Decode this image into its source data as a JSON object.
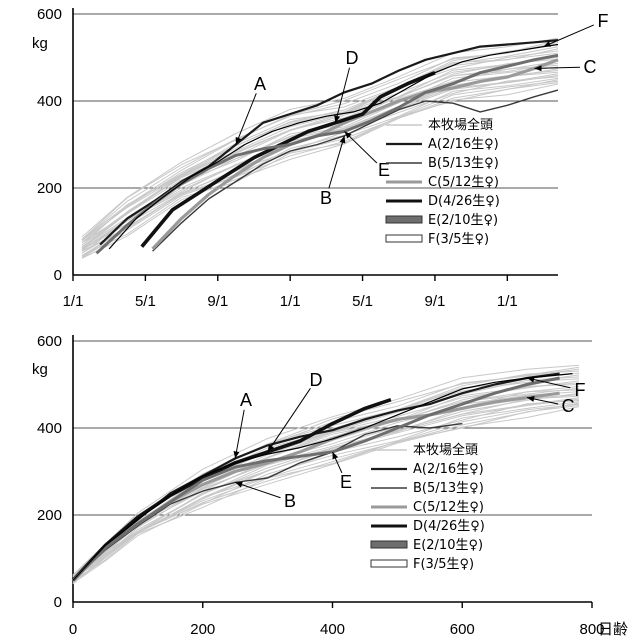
{
  "chart_data": [
    {
      "type": "line",
      "title": "",
      "xlabel": "",
      "ylabel": "kg",
      "ylim": [
        0,
        600
      ],
      "y_ticks": [
        "0",
        "200",
        "400",
        "600"
      ],
      "x_tick_labels": [
        "1/1",
        "5/1",
        "9/1",
        "1/1",
        "5/1",
        "9/1",
        "1/1"
      ],
      "xlim_months": [
        0,
        26.8
      ],
      "grid": "horizontal",
      "legend_position": "right-middle",
      "x_unit": "months since 1/1",
      "background_band": {
        "name": "本牧場全頭",
        "x": [
          0.5,
          3,
          6,
          9,
          12,
          15,
          18,
          21,
          24,
          26.8
        ],
        "lower": [
          40,
          95,
          170,
          215,
          270,
          305,
          355,
          400,
          420,
          440
        ],
        "upper": [
          85,
          175,
          255,
          320,
          375,
          400,
          450,
          505,
          520,
          540
        ]
      },
      "series": [
        {
          "name": "A(2/16生♀)",
          "key": "A",
          "x": [
            1.5,
            3,
            4.5,
            6,
            7.5,
            9,
            10.5,
            12,
            13.5,
            15,
            16.5,
            18,
            19.5,
            21,
            22.5,
            24,
            25.5,
            26.8
          ],
          "y": [
            70,
            130,
            170,
            215,
            250,
            300,
            350,
            370,
            390,
            420,
            440,
            470,
            495,
            510,
            525,
            530,
            535,
            540
          ]
        },
        {
          "name": "B(5/13生♀)",
          "key": "B",
          "x": [
            4.4,
            6,
            7.5,
            9,
            10.5,
            12,
            13.5,
            15,
            16.5,
            18,
            19.5,
            21,
            22.5,
            24,
            25.5,
            26.8
          ],
          "y": [
            55,
            120,
            175,
            215,
            255,
            285,
            300,
            320,
            350,
            380,
            400,
            395,
            375,
            390,
            410,
            425
          ]
        },
        {
          "name": "C(5/12生♀)",
          "key": "C",
          "x": [
            4.4,
            6,
            7.5,
            9,
            10.5,
            12,
            13.5,
            15,
            16.5,
            18,
            19.5,
            21,
            22.5,
            24,
            25.5,
            26.8
          ],
          "y": [
            60,
            130,
            185,
            230,
            270,
            300,
            320,
            350,
            375,
            400,
            420,
            430,
            445,
            455,
            475,
            495
          ]
        },
        {
          "name": "D(4/26生♀)",
          "key": "D",
          "x": [
            3.8,
            5.5,
            7,
            8.5,
            10,
            11.5,
            13,
            14.5,
            16,
            17,
            18.5,
            20
          ],
          "y": [
            65,
            150,
            190,
            230,
            270,
            300,
            330,
            350,
            370,
            410,
            440,
            465
          ]
        },
        {
          "name": "E(2/10生♀)",
          "key": "E",
          "x": [
            1.3,
            3,
            4.5,
            6,
            7.5,
            9,
            10.5,
            12,
            13.5,
            15,
            16.5,
            18,
            19.5,
            21,
            22.5,
            24,
            25.5,
            26.8
          ],
          "y": [
            50,
            115,
            165,
            210,
            245,
            275,
            290,
            300,
            320,
            330,
            355,
            385,
            420,
            440,
            465,
            480,
            495,
            505
          ]
        },
        {
          "name": "F(3/5生♀)",
          "key": "F",
          "x": [
            2,
            3.5,
            5,
            6.5,
            8,
            9.5,
            11,
            12.5,
            14,
            15.5,
            17,
            18.5,
            20,
            21.5,
            23,
            24.5,
            26,
            26.8
          ],
          "y": [
            60,
            130,
            180,
            225,
            260,
            300,
            330,
            350,
            365,
            375,
            395,
            430,
            465,
            490,
            505,
            515,
            525,
            530
          ]
        }
      ],
      "annotations": [
        {
          "text": "A",
          "series": "A"
        },
        {
          "text": "B",
          "series": "B"
        },
        {
          "text": "C",
          "series": "C"
        },
        {
          "text": "D",
          "series": "D"
        },
        {
          "text": "E",
          "series": "E"
        },
        {
          "text": "F",
          "series": "F"
        }
      ]
    },
    {
      "type": "line",
      "title": "",
      "xlabel": "日齢",
      "ylabel": "kg",
      "ylim": [
        0,
        600
      ],
      "xlim": [
        0,
        800
      ],
      "y_ticks": [
        "0",
        "200",
        "400",
        "600"
      ],
      "x_ticks": [
        "0",
        "200",
        "400",
        "600",
        "800"
      ],
      "grid": "horizontal",
      "legend_position": "right-middle",
      "background_band": {
        "name": "本牧場全頭",
        "x": [
          0,
          50,
          100,
          200,
          300,
          400,
          500,
          600,
          700,
          780
        ],
        "lower": [
          45,
          100,
          150,
          220,
          275,
          320,
          360,
          400,
          430,
          450
        ],
        "upper": [
          60,
          130,
          200,
          300,
          370,
          420,
          460,
          510,
          530,
          540
        ]
      },
      "series": [
        {
          "name": "A(2/16生♀)",
          "key": "A",
          "x": [
            0,
            50,
            100,
            150,
            200,
            250,
            300,
            350,
            400,
            450,
            500,
            550,
            600,
            650,
            700,
            750
          ],
          "y": [
            50,
            130,
            190,
            250,
            290,
            330,
            360,
            380,
            395,
            420,
            440,
            455,
            480,
            500,
            515,
            525
          ]
        },
        {
          "name": "B(5/13生♀)",
          "key": "B",
          "x": [
            0,
            50,
            100,
            150,
            200,
            250,
            300,
            350,
            400,
            450,
            500,
            550,
            600
          ],
          "y": [
            50,
            120,
            175,
            225,
            255,
            275,
            285,
            320,
            345,
            385,
            405,
            400,
            410
          ]
        },
        {
          "name": "C(5/12生♀)",
          "key": "C",
          "x": [
            0,
            50,
            100,
            150,
            200,
            250,
            300,
            350,
            400,
            450,
            500,
            550,
            600,
            650,
            700,
            750
          ],
          "y": [
            50,
            125,
            180,
            230,
            270,
            300,
            320,
            345,
            375,
            400,
            420,
            430,
            445,
            460,
            470,
            480
          ]
        },
        {
          "name": "D(4/26生♀)",
          "key": "D",
          "x": [
            0,
            50,
            100,
            150,
            200,
            250,
            300,
            350,
            400,
            450,
            490
          ],
          "y": [
            50,
            130,
            195,
            245,
            285,
            320,
            345,
            370,
            410,
            445,
            465
          ]
        },
        {
          "name": "E(2/10生♀)",
          "key": "E",
          "x": [
            0,
            50,
            100,
            150,
            200,
            250,
            300,
            350,
            400,
            450,
            500,
            550,
            600,
            650,
            700,
            750
          ],
          "y": [
            50,
            125,
            180,
            230,
            280,
            310,
            325,
            335,
            345,
            370,
            400,
            430,
            455,
            480,
            500,
            515
          ]
        },
        {
          "name": "F(3/5生♀)",
          "key": "F",
          "x": [
            0,
            50,
            100,
            150,
            200,
            250,
            300,
            350,
            400,
            450,
            500,
            550,
            600,
            650,
            700,
            770
          ],
          "y": [
            50,
            130,
            190,
            245,
            290,
            320,
            340,
            355,
            375,
            400,
            430,
            460,
            490,
            505,
            515,
            525
          ]
        }
      ],
      "annotations": [
        {
          "text": "A",
          "series": "A"
        },
        {
          "text": "B",
          "series": "B"
        },
        {
          "text": "C",
          "series": "C"
        },
        {
          "text": "D",
          "series": "D"
        },
        {
          "text": "E",
          "series": "E"
        },
        {
          "text": "F",
          "series": "F"
        }
      ]
    }
  ],
  "series_styles": {
    "A": {
      "color": "#1a1a1a",
      "width": 2.2
    },
    "B": {
      "color": "#3a3a3a",
      "width": 1.4
    },
    "C": {
      "color": "#9a9a9a",
      "width": 3.2
    },
    "D": {
      "color": "#111111",
      "width": 3.6
    },
    "E": {
      "color": "#6e6e6e",
      "width": 3.0
    },
    "F": {
      "color": "#000000",
      "width": 1.2
    }
  },
  "band_color": "#c8c8c8"
}
